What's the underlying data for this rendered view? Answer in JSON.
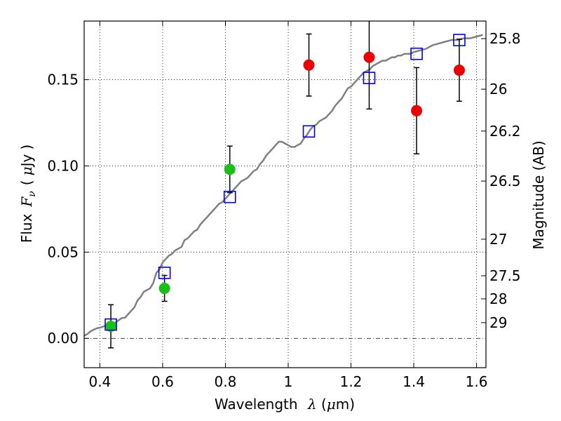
{
  "chart_data": {
    "type": "scatter",
    "title": "",
    "xlabel": "Wavelength  λ (μm)",
    "xlabel_parts": {
      "text": "Wavelength",
      "symbol": "λ",
      "open": " (",
      "unit_symbol": "μ",
      "unit": "m)"
    },
    "ylabel": "Flux  Fν ( μJy )",
    "ylabel_parts": {
      "text": "Flux",
      "symbol": "F",
      "subscript": "ν",
      "open": "(",
      "unit_symbol": "μ",
      "unit": "Jy",
      "close": ")"
    },
    "y2label": "Magnitude (AB)",
    "xlim": [
      0.35,
      1.63
    ],
    "ylim": [
      -0.017,
      0.184
    ],
    "grid": true,
    "x_ticks": [
      {
        "value": 0.4,
        "label": "0.4"
      },
      {
        "value": 0.6,
        "label": "0.6"
      },
      {
        "value": 0.8,
        "label": "0.8"
      },
      {
        "value": 1.0,
        "label": "1"
      },
      {
        "value": 1.2,
        "label": "1.2"
      },
      {
        "value": 1.4,
        "label": "1.4"
      },
      {
        "value": 1.6,
        "label": "1.6"
      }
    ],
    "y_ticks": [
      {
        "value": 0.0,
        "label": "0.00"
      },
      {
        "value": 0.05,
        "label": "0.05"
      },
      {
        "value": 0.1,
        "label": "0.10"
      },
      {
        "value": 0.15,
        "label": "0.15"
      }
    ],
    "mag_ticks": [
      {
        "value": 0.1738,
        "label": "25.8"
      },
      {
        "value": 0.1445,
        "label": "26"
      },
      {
        "value": 0.1202,
        "label": "26.2"
      },
      {
        "value": 0.0912,
        "label": "26.5"
      },
      {
        "value": 0.0575,
        "label": "27"
      },
      {
        "value": 0.0363,
        "label": "27.5"
      },
      {
        "value": 0.0229,
        "label": "28"
      },
      {
        "value": 0.0091,
        "label": "29"
      }
    ],
    "series": [
      {
        "name": "model_spectrum",
        "kind": "line",
        "color": "#808080",
        "x": [
          0.35,
          0.36,
          0.37,
          0.38,
          0.39,
          0.4,
          0.41,
          0.42,
          0.43,
          0.44,
          0.45,
          0.46,
          0.47,
          0.48,
          0.49,
          0.5,
          0.51,
          0.52,
          0.53,
          0.54,
          0.55,
          0.56,
          0.57,
          0.58,
          0.59,
          0.6,
          0.61,
          0.62,
          0.63,
          0.64,
          0.65,
          0.66,
          0.67,
          0.68,
          0.69,
          0.7,
          0.71,
          0.72,
          0.73,
          0.74,
          0.75,
          0.76,
          0.77,
          0.78,
          0.79,
          0.8,
          0.81,
          0.82,
          0.83,
          0.84,
          0.85,
          0.86,
          0.87,
          0.88,
          0.89,
          0.9,
          0.91,
          0.92,
          0.93,
          0.94,
          0.95,
          0.96,
          0.97,
          0.98,
          0.99,
          1.0,
          1.01,
          1.02,
          1.03,
          1.04,
          1.05,
          1.06,
          1.07,
          1.08,
          1.09,
          1.1,
          1.11,
          1.12,
          1.13,
          1.14,
          1.15,
          1.16,
          1.17,
          1.18,
          1.19,
          1.2,
          1.21,
          1.22,
          1.23,
          1.24,
          1.25,
          1.26,
          1.27,
          1.28,
          1.29,
          1.3,
          1.31,
          1.32,
          1.33,
          1.34,
          1.35,
          1.36,
          1.37,
          1.38,
          1.39,
          1.4,
          1.42,
          1.44,
          1.46,
          1.48,
          1.5,
          1.52,
          1.54,
          1.56,
          1.58,
          1.6,
          1.62
        ],
        "y": [
          0.0015,
          0.0025,
          0.004,
          0.005,
          0.0058,
          0.0062,
          0.0068,
          0.0075,
          0.0082,
          0.0085,
          0.0092,
          0.0105,
          0.0118,
          0.012,
          0.014,
          0.016,
          0.018,
          0.022,
          0.024,
          0.027,
          0.028,
          0.029,
          0.032,
          0.038,
          0.04,
          0.044,
          0.046,
          0.048,
          0.049,
          0.051,
          0.052,
          0.053,
          0.057,
          0.058,
          0.06,
          0.062,
          0.063,
          0.066,
          0.068,
          0.07,
          0.072,
          0.074,
          0.076,
          0.078,
          0.079,
          0.081,
          0.083,
          0.085,
          0.087,
          0.089,
          0.091,
          0.092,
          0.093,
          0.095,
          0.097,
          0.098,
          0.101,
          0.103,
          0.106,
          0.108,
          0.11,
          0.112,
          0.114,
          0.114,
          0.113,
          0.112,
          0.111,
          0.111,
          0.112,
          0.113,
          0.116,
          0.118,
          0.121,
          0.123,
          0.124,
          0.126,
          0.127,
          0.128,
          0.13,
          0.132,
          0.135,
          0.137,
          0.139,
          0.142,
          0.145,
          0.146,
          0.148,
          0.15,
          0.152,
          0.154,
          0.155,
          0.156,
          0.158,
          0.159,
          0.16,
          0.161,
          0.161,
          0.162,
          0.163,
          0.163,
          0.164,
          0.164,
          0.165,
          0.165,
          0.165,
          0.166,
          0.167,
          0.168,
          0.17,
          0.171,
          0.172,
          0.173,
          0.173,
          0.174,
          0.174,
          0.175,
          0.176
        ]
      },
      {
        "name": "green_detections",
        "kind": "scatter",
        "marker": "circle",
        "color": "#18c018",
        "points": [
          {
            "x": 0.435,
            "y": 0.007,
            "err": 0.0125
          },
          {
            "x": 0.606,
            "y": 0.029,
            "err": 0.0075
          },
          {
            "x": 0.814,
            "y": 0.098,
            "err": 0.0135
          }
        ]
      },
      {
        "name": "red_detections",
        "kind": "scatter",
        "marker": "circle",
        "color": "#ee0000",
        "points": [
          {
            "x": 1.066,
            "y": 0.1585,
            "err": 0.018
          },
          {
            "x": 1.258,
            "y": 0.163,
            "err": 0.03
          },
          {
            "x": 1.409,
            "y": 0.132,
            "err": 0.025
          },
          {
            "x": 1.545,
            "y": 0.1555,
            "err": 0.018
          }
        ]
      },
      {
        "name": "model_bandpass_flux",
        "kind": "scatter",
        "marker": "open-square",
        "color": "#0000dd",
        "points": [
          {
            "x": 0.435,
            "y": 0.008
          },
          {
            "x": 0.606,
            "y": 0.038
          },
          {
            "x": 0.814,
            "y": 0.082
          },
          {
            "x": 1.066,
            "y": 0.12
          },
          {
            "x": 1.258,
            "y": 0.151
          },
          {
            "x": 1.409,
            "y": 0.165
          },
          {
            "x": 1.545,
            "y": 0.173
          }
        ]
      }
    ],
    "zero_line": {
      "value": 0.0,
      "style": "dash-dot"
    }
  }
}
